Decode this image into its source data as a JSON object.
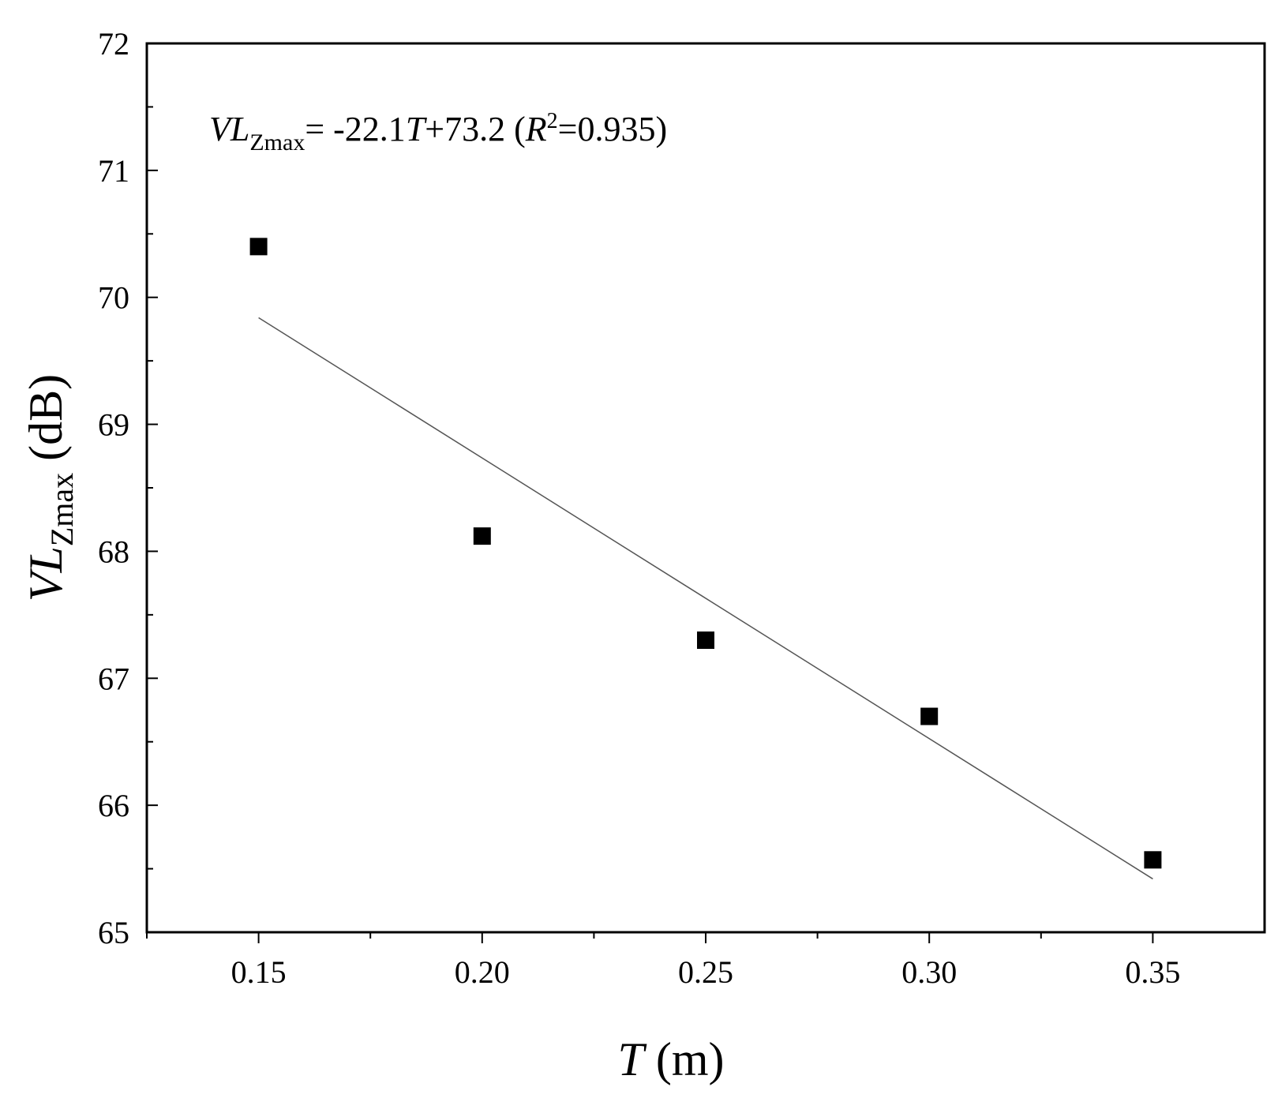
{
  "chart_data": {
    "type": "scatter",
    "xlabel": {
      "var": "T",
      "unit": "(m)"
    },
    "ylabel": {
      "var": "VL",
      "sub": "Zmax",
      "unit": "(dB)"
    },
    "xlim": [
      0.125,
      0.375
    ],
    "ylim": [
      65,
      72
    ],
    "x_ticks": [
      "0.15",
      "0.20",
      "0.25",
      "0.30",
      "0.35"
    ],
    "x_tick_values": [
      0.15,
      0.2,
      0.25,
      0.3,
      0.35
    ],
    "y_ticks": [
      "65",
      "66",
      "67",
      "68",
      "69",
      "70",
      "71",
      "72"
    ],
    "y_tick_values": [
      65,
      66,
      67,
      68,
      69,
      70,
      71,
      72
    ],
    "points": [
      {
        "x": 0.15,
        "y": 70.4
      },
      {
        "x": 0.2,
        "y": 68.12
      },
      {
        "x": 0.25,
        "y": 67.3
      },
      {
        "x": 0.3,
        "y": 66.7
      },
      {
        "x": 0.35,
        "y": 65.57
      }
    ],
    "fit_line": {
      "x": [
        0.15,
        0.35
      ],
      "y": [
        69.84,
        65.42
      ]
    },
    "annotation": {
      "var": "VL",
      "sub": "Zmax",
      "eq_a": "= -22.1",
      "eq_var": "T",
      "eq_b": "+73.2 (",
      "r_var": "R",
      "r_sup": "2",
      "r_val": "=0.935)"
    },
    "grid": false,
    "marker": "square",
    "marker_color": "#000000",
    "line_color": "#555555"
  }
}
